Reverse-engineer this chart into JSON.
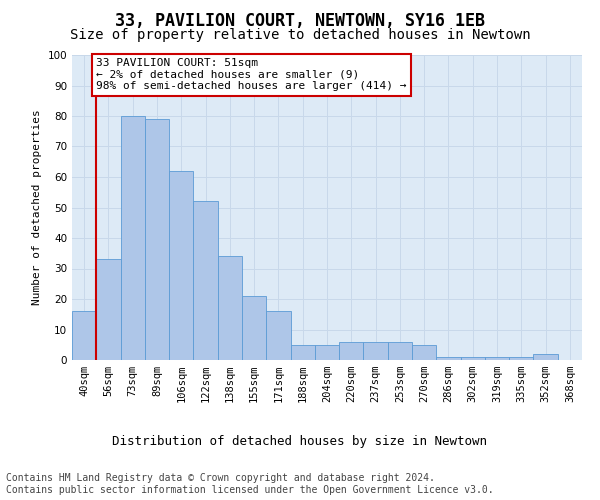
{
  "title": "33, PAVILION COURT, NEWTOWN, SY16 1EB",
  "subtitle": "Size of property relative to detached houses in Newtown",
  "xlabel": "Distribution of detached houses by size in Newtown",
  "ylabel": "Number of detached properties",
  "categories": [
    "40sqm",
    "56sqm",
    "73sqm",
    "89sqm",
    "106sqm",
    "122sqm",
    "138sqm",
    "155sqm",
    "171sqm",
    "188sqm",
    "204sqm",
    "220sqm",
    "237sqm",
    "253sqm",
    "270sqm",
    "286sqm",
    "302sqm",
    "319sqm",
    "335sqm",
    "352sqm",
    "368sqm"
  ],
  "values": [
    16,
    33,
    80,
    79,
    62,
    52,
    34,
    21,
    16,
    5,
    5,
    6,
    6,
    6,
    5,
    1,
    1,
    1,
    1,
    2,
    0
  ],
  "bar_color": "#aec6e8",
  "bar_edge_color": "#5b9bd5",
  "annotation_text": "33 PAVILION COURT: 51sqm\n← 2% of detached houses are smaller (9)\n98% of semi-detached houses are larger (414) →",
  "annotation_box_facecolor": "#ffffff",
  "annotation_box_edgecolor": "#cc0000",
  "vline_color": "#cc0000",
  "vline_x": 0.5,
  "ylim": [
    0,
    100
  ],
  "yticks": [
    0,
    10,
    20,
    30,
    40,
    50,
    60,
    70,
    80,
    90,
    100
  ],
  "grid_color": "#c8d8ea",
  "background_color": "#ddeaf6",
  "footer_line1": "Contains HM Land Registry data © Crown copyright and database right 2024.",
  "footer_line2": "Contains public sector information licensed under the Open Government Licence v3.0.",
  "title_fontsize": 12,
  "subtitle_fontsize": 10,
  "xlabel_fontsize": 9,
  "ylabel_fontsize": 8,
  "tick_fontsize": 7.5,
  "annotation_fontsize": 8,
  "footer_fontsize": 7
}
